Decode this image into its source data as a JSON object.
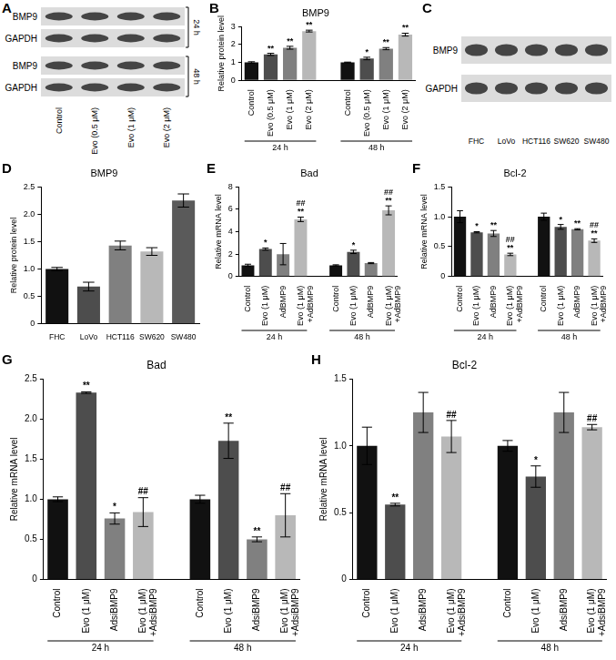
{
  "chart_data": [
    {
      "panel_label": "B",
      "type": "bar",
      "title": "BMP9",
      "y_label": "Relative protein level",
      "categories": [
        "Control",
        "Evo (0.5 μM)",
        "Evo (1 μM)",
        "Evo (2 μM)"
      ],
      "colors": [
        "#111111",
        "#4d4d4d",
        "#808080",
        "#b8b8b8"
      ],
      "groups": [
        {
          "label": "24 h",
          "values": [
            1.0,
            1.45,
            1.82,
            2.75
          ],
          "errors": [
            0.04,
            0.06,
            0.08,
            0.05
          ],
          "marks": [
            [],
            [
              "**"
            ],
            [
              "**"
            ],
            [
              "**"
            ]
          ]
        },
        {
          "label": "48 h",
          "values": [
            1.0,
            1.22,
            1.77,
            2.55
          ],
          "errors": [
            0.02,
            0.07,
            0.06,
            0.08
          ],
          "marks": [
            [],
            [
              "*"
            ],
            [
              "**"
            ],
            [
              "**"
            ]
          ]
        }
      ],
      "ylim": [
        0,
        3
      ],
      "yticks": [
        0,
        1,
        2,
        3
      ],
      "grid": false
    },
    {
      "panel_label": "D",
      "type": "bar",
      "title": "BMP9",
      "y_label": "Relative protein level",
      "categories": [
        "FHC",
        "LoVo",
        "HCT116",
        "SW620",
        "SW480"
      ],
      "colors": [
        "#111111",
        "#4d4d4d",
        "#808080",
        "#b8b8b8",
        "#5a5a5a"
      ],
      "values": [
        1.0,
        0.68,
        1.43,
        1.32,
        2.25
      ],
      "errors": [
        0.03,
        0.08,
        0.08,
        0.07,
        0.12
      ],
      "ylim": [
        0,
        2.5
      ],
      "yticks": [
        0,
        0.5,
        {
          "value": 1,
          "label": "1.0"
        },
        1.5,
        {
          "value": 2,
          "label": "2.0"
        },
        2.5
      ],
      "grid": false
    },
    {
      "panel_label": "E",
      "type": "bar",
      "title": "Bad",
      "y_label": "Relative mRNA level",
      "categories": [
        "Control",
        "Evo (1 μM)",
        "AdBMP9",
        [
          "Evo (1 μM)",
          "+AdBMP9"
        ]
      ],
      "colors": [
        "#111111",
        "#4d4d4d",
        "#808080",
        "#b8b8b8"
      ],
      "groups": [
        {
          "label": "24 h",
          "values": [
            1.0,
            2.45,
            2.0,
            5.1
          ],
          "errors": [
            0.1,
            0.1,
            0.95,
            0.2
          ],
          "marks": [
            [],
            [
              "*"
            ],
            [],
            [
              "##",
              "**"
            ]
          ]
        },
        {
          "label": "48 h",
          "values": [
            1.0,
            2.2,
            1.2,
            5.9
          ],
          "errors": [
            0.05,
            0.15,
            0.05,
            0.4
          ],
          "marks": [
            [],
            [
              "*"
            ],
            [],
            [
              "##",
              "**"
            ]
          ]
        }
      ],
      "ylim": [
        0,
        8
      ],
      "yticks": [
        0,
        2,
        4,
        6,
        8
      ],
      "grid": false
    },
    {
      "panel_label": "F",
      "type": "bar",
      "title": "Bcl-2",
      "y_label": "Relative mRNA level",
      "categories": [
        "Control",
        "Evo (1 μM)",
        "AdBMP9",
        [
          "Evo (1 μM)",
          "+AdBMP9"
        ]
      ],
      "colors": [
        "#111111",
        "#4d4d4d",
        "#808080",
        "#b8b8b8"
      ],
      "groups": [
        {
          "label": "24 h",
          "values": [
            1.0,
            0.74,
            0.72,
            0.37
          ],
          "errors": [
            0.1,
            0.01,
            0.05,
            0.02
          ],
          "marks": [
            [],
            [
              "*"
            ],
            [
              "**"
            ],
            [
              "##",
              "**"
            ]
          ]
        },
        {
          "label": "48 h",
          "values": [
            1.0,
            0.83,
            0.79,
            0.6
          ],
          "errors": [
            0.06,
            0.04,
            0.01,
            0.03
          ],
          "marks": [
            [],
            [
              "*"
            ],
            [
              "**"
            ],
            [
              "##",
              "**"
            ]
          ]
        }
      ],
      "ylim": [
        0,
        1.5
      ],
      "yticks": [
        0,
        0.5,
        {
          "value": 1,
          "label": "1.0"
        },
        1.5
      ],
      "grid": false
    },
    {
      "panel_label": "G",
      "type": "bar",
      "title": "Bad",
      "y_label": "Relative mRNA level",
      "categories": [
        "Control",
        "Evo (1 μM)",
        "AdsiBMP9",
        [
          "Evo (1 μM)",
          "+AdsiBMP9"
        ]
      ],
      "colors": [
        "#111111",
        "#4d4d4d",
        "#808080",
        "#b8b8b8"
      ],
      "groups": [
        {
          "label": "24 h",
          "values": [
            1.0,
            2.33,
            0.76,
            0.84
          ],
          "errors": [
            0.03,
            0.01,
            0.07,
            0.18
          ],
          "marks": [
            [],
            [
              "**"
            ],
            [
              "*"
            ],
            [
              "##"
            ]
          ]
        },
        {
          "label": "48 h",
          "values": [
            1.0,
            1.73,
            0.5,
            0.8
          ],
          "errors": [
            0.05,
            0.22,
            0.03,
            0.27
          ],
          "marks": [
            [],
            [
              "**"
            ],
            [
              "**"
            ],
            [
              "##"
            ]
          ]
        }
      ],
      "ylim": [
        0,
        2.5
      ],
      "yticks": [
        0,
        0.5,
        {
          "value": 1,
          "label": "1.0"
        },
        1.5,
        {
          "value": 2,
          "label": "2.0"
        },
        2.5
      ],
      "grid": false
    },
    {
      "panel_label": "H",
      "type": "bar",
      "title": "Bcl-2",
      "y_label": "Relative mRNA level",
      "categories": [
        "Control",
        "Evo (1 μM)",
        "AdsiBMP9",
        [
          "Evo (1 μM)",
          "+AdsiBMP9"
        ]
      ],
      "colors": [
        "#111111",
        "#4d4d4d",
        "#808080",
        "#b8b8b8"
      ],
      "groups": [
        {
          "label": "24 h",
          "values": [
            1.0,
            0.56,
            1.25,
            1.07
          ],
          "errors": [
            0.14,
            0.01,
            0.15,
            0.12
          ],
          "marks": [
            [],
            [
              "**"
            ],
            [],
            [
              "##"
            ]
          ]
        },
        {
          "label": "48 h",
          "values": [
            1.0,
            0.77,
            1.25,
            1.14
          ],
          "errors": [
            0.04,
            0.08,
            0.15,
            0.02
          ],
          "marks": [
            [],
            [
              "*"
            ],
            [],
            [
              "##"
            ]
          ]
        }
      ],
      "ylim": [
        0,
        1.5
      ],
      "yticks": [
        0,
        0.5,
        {
          "value": 1,
          "label": "1.0"
        },
        1.5
      ],
      "grid": false
    }
  ],
  "blots": [
    {
      "panel_label": "A",
      "lanes": [
        "Control",
        "Evo (0.5 μM)",
        "Evo (1 μM)",
        "Evo (2 μM)"
      ],
      "strips": [
        {
          "label": "24 h",
          "rows": [
            "BMP9",
            "GAPDH"
          ]
        },
        {
          "label": "48 h",
          "rows": [
            "BMP9",
            "GAPDH"
          ]
        }
      ]
    },
    {
      "panel_label": "C",
      "lanes": [
        "FHC",
        "LoVo",
        "HCT116",
        "SW620",
        "SW480"
      ],
      "strips": [
        {
          "rows": [
            "BMP9",
            "GAPDH"
          ]
        }
      ]
    }
  ]
}
